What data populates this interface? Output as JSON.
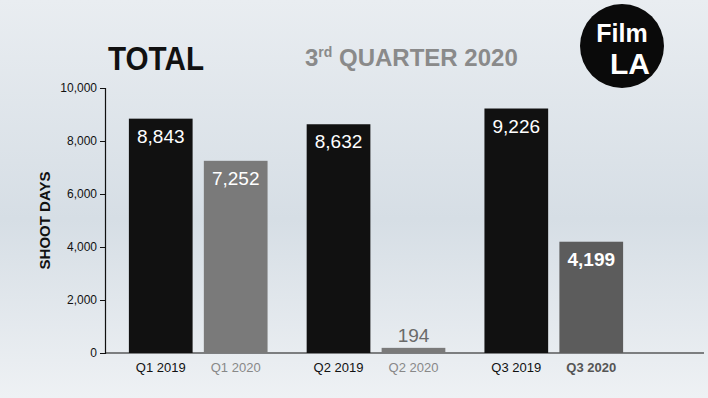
{
  "chart_data": {
    "type": "bar",
    "title": "TOTAL",
    "subtitle": "3rd QUARTER 2020",
    "logo": [
      "Film",
      "LA"
    ],
    "y_label": "SHOOT DAYS",
    "categories": [
      "Q1 2019",
      "Q1 2020",
      "Q2 2019",
      "Q2 2020",
      "Q3 2019",
      "Q3 2020"
    ],
    "values": [
      8843,
      7252,
      8632,
      194,
      9226,
      4199
    ],
    "value_labels": [
      "8,843",
      "7,252",
      "8,632",
      "194",
      "9,226",
      "4,199"
    ],
    "colors": [
      "#111111",
      "#7a7a7a",
      "#111111",
      "#7a7a7a",
      "#111111",
      "#5c5c5c"
    ],
    "data_labels": true,
    "grid": false,
    "ylim": [
      0,
      10000
    ],
    "yticks": [
      0,
      {
        "value": 2000,
        "label": "2,000"
      },
      {
        "value": 4000,
        "label": "4,000"
      },
      {
        "value": 6000,
        "label": "6,000"
      },
      {
        "value": 8000,
        "label": "8,000"
      },
      {
        "value": 10000,
        "label": "10,000"
      }
    ]
  }
}
